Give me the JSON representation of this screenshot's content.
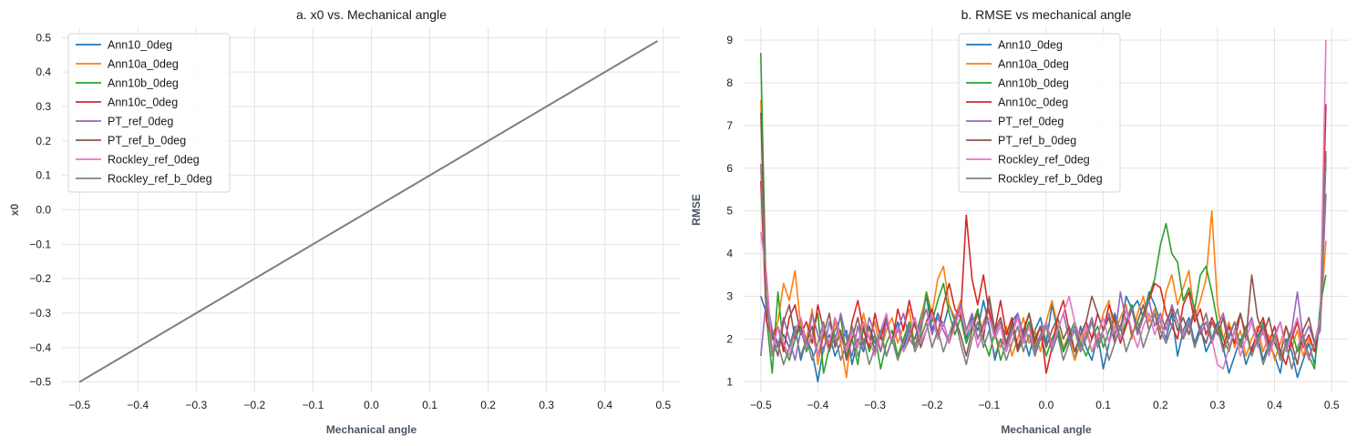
{
  "chart_data": [
    {
      "type": "line",
      "title": "a. x0 vs. Mechanical angle",
      "xlabel": "Mechanical angle",
      "ylabel": "x0",
      "xlim": [
        -0.53,
        0.53
      ],
      "ylim": [
        -0.53,
        0.53
      ],
      "xticks": [
        -0.5,
        -0.4,
        -0.3,
        -0.2,
        -0.1,
        0.0,
        0.1,
        0.2,
        0.3,
        0.4,
        0.5
      ],
      "xtick_labels": [
        "−0.5",
        "−0.4",
        "−0.3",
        "−0.2",
        "−0.1",
        "0.0",
        "0.1",
        "0.2",
        "0.3",
        "0.4",
        "0.5"
      ],
      "yticks": [
        -0.5,
        -0.4,
        -0.3,
        -0.2,
        -0.1,
        0.0,
        0.1,
        0.2,
        0.3,
        0.4,
        0.5
      ],
      "ytick_labels": [
        "−0.5",
        "−0.4",
        "−0.3",
        "−0.2",
        "−0.1",
        "0.0",
        "0.1",
        "0.2",
        "0.3",
        "0.4",
        "0.5"
      ],
      "grid": true,
      "legend_position": "top-left",
      "series": [
        {
          "name": "Ann10_0deg",
          "color": "#1f77b4",
          "x": [
            -0.5,
            0.49
          ],
          "y": [
            -0.5,
            0.49
          ]
        },
        {
          "name": "Ann10a_0deg",
          "color": "#ff7f0e",
          "x": [
            -0.5,
            0.49
          ],
          "y": [
            -0.5,
            0.49
          ]
        },
        {
          "name": "Ann10b_0deg",
          "color": "#2ca02c",
          "x": [
            -0.5,
            0.49
          ],
          "y": [
            -0.5,
            0.49
          ]
        },
        {
          "name": "Ann10c_0deg",
          "color": "#d62728",
          "x": [
            -0.5,
            0.49
          ],
          "y": [
            -0.5,
            0.49
          ]
        },
        {
          "name": "PT_ref_0deg",
          "color": "#9467bd",
          "x": [
            -0.5,
            0.49
          ],
          "y": [
            -0.5,
            0.49
          ]
        },
        {
          "name": "PT_ref_b_0deg",
          "color": "#8c564b",
          "x": [
            -0.5,
            0.49
          ],
          "y": [
            -0.5,
            0.49
          ]
        },
        {
          "name": "Rockley_ref_0deg",
          "color": "#e377c2",
          "x": [
            -0.5,
            0.49
          ],
          "y": [
            -0.5,
            0.49
          ]
        },
        {
          "name": "Rockley_ref_b_0deg",
          "color": "#7f7f7f",
          "x": [
            -0.5,
            0.49
          ],
          "y": [
            -0.5,
            0.49
          ]
        }
      ]
    },
    {
      "type": "line",
      "title": "b. RMSE vs mechanical angle",
      "xlabel": "Mechanical angle",
      "ylabel": "RMSE",
      "xlim": [
        -0.53,
        0.53
      ],
      "ylim": [
        0.75,
        9.3
      ],
      "xticks": [
        -0.5,
        -0.4,
        -0.3,
        -0.2,
        -0.1,
        0.0,
        0.1,
        0.2,
        0.3,
        0.4,
        0.5
      ],
      "xtick_labels": [
        "−0.5",
        "−0.4",
        "−0.3",
        "−0.2",
        "−0.1",
        "0.0",
        "0.1",
        "0.2",
        "0.3",
        "0.4",
        "0.5"
      ],
      "yticks": [
        1,
        2,
        3,
        4,
        5,
        6,
        7,
        8,
        9
      ],
      "ytick_labels": [
        "1",
        "2",
        "3",
        "4",
        "5",
        "6",
        "7",
        "8",
        "9"
      ],
      "grid": true,
      "legend_position": "upper-center",
      "x": [
        -0.5,
        -0.49,
        -0.48,
        -0.47,
        -0.46,
        -0.45,
        -0.44,
        -0.43,
        -0.42,
        -0.41,
        -0.4,
        -0.39,
        -0.38,
        -0.37,
        -0.36,
        -0.35,
        -0.34,
        -0.33,
        -0.32,
        -0.31,
        -0.3,
        -0.29,
        -0.28,
        -0.27,
        -0.26,
        -0.25,
        -0.24,
        -0.23,
        -0.22,
        -0.21,
        -0.2,
        -0.19,
        -0.18,
        -0.17,
        -0.16,
        -0.15,
        -0.14,
        -0.13,
        -0.12,
        -0.11,
        -0.1,
        -0.09,
        -0.08,
        -0.07,
        -0.06,
        -0.05,
        -0.04,
        -0.03,
        -0.02,
        -0.01,
        0.0,
        0.01,
        0.02,
        0.03,
        0.04,
        0.05,
        0.06,
        0.07,
        0.08,
        0.09,
        0.1,
        0.11,
        0.12,
        0.13,
        0.14,
        0.15,
        0.16,
        0.17,
        0.18,
        0.19,
        0.2,
        0.21,
        0.22,
        0.23,
        0.24,
        0.25,
        0.26,
        0.27,
        0.28,
        0.29,
        0.3,
        0.31,
        0.32,
        0.33,
        0.34,
        0.35,
        0.36,
        0.37,
        0.38,
        0.39,
        0.4,
        0.41,
        0.42,
        0.43,
        0.44,
        0.45,
        0.46,
        0.47,
        0.48,
        0.49
      ],
      "series": [
        {
          "name": "Ann10_0deg",
          "color": "#1f77b4",
          "values": [
            3.0,
            2.6,
            2.2,
            1.9,
            2.1,
            1.8,
            2.3,
            1.5,
            2.0,
            1.7,
            1.0,
            1.8,
            2.1,
            1.6,
            1.9,
            2.2,
            1.4,
            2.0,
            1.7,
            2.3,
            1.9,
            2.1,
            1.6,
            2.0,
            2.4,
            1.8,
            2.2,
            2.0,
            2.5,
            3.0,
            2.2,
            2.6,
            2.3,
            2.8,
            2.4,
            2.7,
            2.0,
            2.5,
            2.2,
            2.9,
            2.3,
            1.5,
            2.0,
            1.8,
            2.4,
            2.6,
            2.1,
            1.6,
            2.2,
            2.5,
            1.9,
            2.8,
            2.2,
            1.7,
            2.0,
            1.5,
            2.3,
            1.8,
            1.5,
            2.1,
            1.3,
            1.9,
            2.6,
            2.2,
            3.0,
            2.7,
            2.9,
            2.5,
            3.1,
            2.8,
            2.4,
            2.0,
            2.6,
            1.6,
            2.2,
            2.5,
            1.9,
            2.3,
            1.7,
            2.0,
            2.4,
            1.8,
            1.2,
            1.6,
            2.0,
            1.4,
            1.8,
            2.1,
            1.5,
            1.9,
            1.6,
            1.2,
            2.0,
            1.7,
            1.1,
            1.5,
            1.9,
            1.4,
            2.5,
            6.2
          ]
        },
        {
          "name": "Ann10a_0deg",
          "color": "#ff7f0e",
          "values": [
            7.6,
            2.8,
            2.1,
            2.4,
            3.3,
            2.9,
            3.6,
            2.3,
            2.0,
            2.7,
            1.4,
            2.1,
            1.7,
            2.4,
            1.9,
            1.1,
            2.3,
            1.8,
            2.6,
            2.0,
            2.4,
            1.7,
            2.2,
            2.5,
            1.9,
            2.3,
            2.7,
            1.8,
            2.4,
            3.1,
            2.6,
            3.4,
            3.7,
            2.8,
            2.5,
            2.9,
            2.2,
            2.6,
            2.0,
            2.4,
            2.7,
            2.1,
            1.8,
            2.3,
            1.6,
            2.0,
            2.5,
            1.9,
            2.2,
            1.7,
            2.4,
            2.9,
            2.3,
            1.8,
            2.1,
            1.5,
            1.9,
            2.2,
            1.7,
            2.0,
            2.6,
            2.9,
            2.1,
            2.5,
            2.8,
            2.0,
            2.6,
            3.0,
            2.4,
            2.7,
            2.2,
            3.1,
            3.5,
            2.8,
            3.2,
            3.6,
            2.5,
            2.9,
            3.4,
            5.0,
            2.8,
            2.0,
            2.4,
            1.8,
            2.2,
            1.6,
            2.0,
            2.3,
            1.7,
            2.1,
            1.5,
            1.9,
            2.3,
            1.8,
            2.2,
            1.6,
            2.0,
            1.7,
            2.4,
            4.3
          ]
        },
        {
          "name": "Ann10b_0deg",
          "color": "#2ca02c",
          "values": [
            8.7,
            2.5,
            1.2,
            3.1,
            1.8,
            1.5,
            2.0,
            2.3,
            1.7,
            2.1,
            2.6,
            1.2,
            1.8,
            2.2,
            2.5,
            1.6,
            2.0,
            1.4,
            2.3,
            1.7,
            2.1,
            1.3,
            1.9,
            2.2,
            1.6,
            2.0,
            2.4,
            1.8,
            2.1,
            3.1,
            2.4,
            2.9,
            3.3,
            2.6,
            2.1,
            2.5,
            1.9,
            2.3,
            2.7,
            2.0,
            1.6,
            2.2,
            1.5,
            1.9,
            2.3,
            1.7,
            2.0,
            2.4,
            1.8,
            2.1,
            1.6,
            2.0,
            2.3,
            1.7,
            2.1,
            2.4,
            1.9,
            1.6,
            2.0,
            2.3,
            1.8,
            2.2,
            2.5,
            2.0,
            2.4,
            2.8,
            2.2,
            2.6,
            3.0,
            3.4,
            4.2,
            4.7,
            4.0,
            3.8,
            2.9,
            3.2,
            2.7,
            3.5,
            3.7,
            3.1,
            2.4,
            2.0,
            1.7,
            2.2,
            1.9,
            2.3,
            1.6,
            2.0,
            2.4,
            1.8,
            2.1,
            1.5,
            1.9,
            2.2,
            1.7,
            2.0,
            1.6,
            1.3,
            2.8,
            3.5
          ]
        },
        {
          "name": "Ann10c_0deg",
          "color": "#d62728",
          "values": [
            5.7,
            2.4,
            2.0,
            2.3,
            1.7,
            2.5,
            2.8,
            2.1,
            2.4,
            1.9,
            2.8,
            2.2,
            1.8,
            2.5,
            2.1,
            1.7,
            2.4,
            2.9,
            2.2,
            1.8,
            2.6,
            2.0,
            2.4,
            1.9,
            2.7,
            2.2,
            2.9,
            2.3,
            2.0,
            2.4,
            2.7,
            2.1,
            2.8,
            3.3,
            2.7,
            2.5,
            4.9,
            3.4,
            2.8,
            3.5,
            2.6,
            2.2,
            2.9,
            2.1,
            2.5,
            1.8,
            2.2,
            2.6,
            1.9,
            2.3,
            1.2,
            1.8,
            2.5,
            2.9,
            2.2,
            1.7,
            2.1,
            2.4,
            2.0,
            2.6,
            2.2,
            2.8,
            2.4,
            1.9,
            2.3,
            2.7,
            2.1,
            2.5,
            2.9,
            3.3,
            3.2,
            2.6,
            2.3,
            2.0,
            2.8,
            3.1,
            2.4,
            2.7,
            2.1,
            2.5,
            2.2,
            1.8,
            2.3,
            1.9,
            2.6,
            2.1,
            1.7,
            2.2,
            2.5,
            1.9,
            2.3,
            1.7,
            1.4,
            2.0,
            2.4,
            1.8,
            2.1,
            1.7,
            2.4,
            7.5
          ]
        },
        {
          "name": "PT_ref_0deg",
          "color": "#9467bd",
          "values": [
            1.6,
            3.0,
            2.2,
            1.8,
            2.5,
            2.0,
            1.5,
            2.2,
            1.8,
            2.6,
            2.1,
            1.7,
            2.4,
            1.9,
            2.6,
            2.0,
            1.6,
            2.3,
            1.8,
            2.5,
            2.1,
            1.7,
            2.4,
            1.9,
            2.2,
            2.6,
            2.0,
            1.8,
            2.3,
            2.7,
            2.1,
            2.5,
            2.2,
            1.9,
            2.4,
            2.8,
            2.2,
            2.6,
            2.0,
            2.3,
            2.9,
            2.1,
            2.4,
            1.8,
            2.2,
            2.6,
            2.0,
            2.3,
            1.7,
            2.1,
            2.4,
            1.9,
            2.2,
            2.6,
            2.0,
            2.3,
            1.8,
            2.1,
            2.5,
            1.9,
            2.2,
            2.6,
            2.0,
            3.1,
            2.4,
            2.7,
            2.1,
            2.5,
            2.9,
            2.3,
            2.6,
            2.2,
            2.8,
            2.4,
            2.0,
            2.3,
            2.7,
            2.1,
            2.4,
            1.9,
            2.3,
            2.6,
            2.0,
            2.4,
            1.8,
            2.2,
            2.5,
            1.9,
            2.3,
            1.7,
            2.1,
            2.4,
            1.8,
            2.2,
            3.1,
            2.0,
            2.3,
            1.9,
            2.3,
            5.4
          ]
        },
        {
          "name": "PT_ref_b_0deg",
          "color": "#8c564b",
          "values": [
            7.3,
            2.8,
            2.1,
            1.6,
            2.4,
            2.8,
            2.0,
            2.5,
            1.9,
            2.3,
            1.6,
            2.1,
            2.6,
            1.8,
            2.2,
            1.5,
            2.0,
            2.5,
            1.9,
            2.3,
            1.7,
            2.1,
            2.5,
            1.9,
            2.3,
            1.7,
            2.0,
            2.4,
            1.8,
            2.2,
            2.6,
            2.0,
            2.4,
            1.9,
            2.5,
            2.1,
            1.6,
            2.2,
            2.6,
            2.0,
            3.0,
            2.2,
            2.5,
            1.9,
            2.4,
            1.7,
            2.1,
            2.6,
            2.0,
            2.3,
            1.8,
            2.2,
            2.5,
            2.0,
            2.3,
            1.7,
            2.1,
            2.4,
            3.0,
            2.6,
            2.2,
            2.5,
            1.9,
            2.3,
            2.7,
            2.1,
            2.4,
            2.8,
            2.2,
            2.6,
            2.0,
            2.4,
            2.7,
            2.2,
            2.5,
            2.1,
            2.7,
            2.2,
            1.9,
            2.4,
            2.1,
            2.5,
            1.8,
            2.2,
            2.6,
            2.0,
            3.5,
            2.5,
            2.1,
            2.5,
            1.9,
            1.6,
            2.3,
            1.9,
            1.4,
            2.2,
            2.5,
            1.9,
            2.5,
            6.3
          ]
        },
        {
          "name": "Rockley_ref_0deg",
          "color": "#e377c2",
          "values": [
            4.5,
            3.5,
            1.7,
            2.3,
            1.9,
            1.6,
            2.2,
            2.5,
            1.8,
            2.1,
            1.6,
            2.3,
            1.9,
            2.5,
            2.0,
            1.7,
            2.2,
            1.8,
            2.4,
            2.0,
            1.6,
            2.2,
            2.6,
            1.9,
            2.3,
            1.7,
            2.1,
            2.5,
            1.9,
            2.2,
            2.6,
            2.0,
            2.4,
            1.9,
            2.3,
            2.7,
            2.1,
            2.4,
            1.8,
            2.2,
            2.5,
            2.0,
            2.3,
            1.7,
            2.1,
            2.5,
            1.9,
            2.3,
            1.6,
            2.0,
            2.4,
            1.8,
            2.2,
            2.6,
            3.0,
            2.4,
            2.0,
            2.3,
            1.7,
            2.1,
            2.5,
            1.9,
            2.3,
            2.0,
            2.7,
            2.2,
            1.8,
            2.3,
            2.6,
            2.1,
            2.5,
            1.9,
            2.3,
            2.7,
            2.1,
            2.4,
            1.8,
            2.2,
            2.6,
            2.0,
            1.4,
            1.3,
            1.8,
            2.2,
            1.6,
            2.0,
            2.4,
            1.8,
            2.2,
            1.6,
            2.0,
            2.4,
            1.7,
            2.1,
            2.5,
            1.9,
            1.5,
            1.9,
            2.5,
            9.0
          ]
        },
        {
          "name": "Rockley_ref_b_0deg",
          "color": "#7f7f7f",
          "values": [
            6.1,
            2.9,
            1.6,
            1.9,
            1.4,
            1.8,
            2.2,
            1.6,
            2.0,
            1.5,
            1.9,
            2.4,
            1.7,
            2.1,
            1.5,
            1.9,
            2.3,
            1.6,
            2.0,
            1.4,
            1.8,
            2.2,
            1.6,
            2.0,
            1.5,
            1.9,
            2.3,
            1.7,
            2.0,
            2.4,
            1.8,
            2.2,
            1.7,
            2.1,
            2.5,
            1.9,
            1.4,
            2.0,
            2.4,
            1.8,
            2.2,
            1.6,
            2.0,
            1.5,
            1.9,
            2.3,
            1.7,
            2.1,
            1.6,
            2.0,
            2.3,
            1.7,
            2.1,
            1.5,
            1.9,
            2.2,
            1.7,
            2.0,
            2.4,
            1.8,
            2.1,
            1.5,
            1.9,
            2.3,
            1.7,
            2.1,
            2.4,
            1.8,
            2.2,
            2.6,
            2.2,
            1.9,
            2.3,
            2.7,
            2.0,
            2.4,
            1.8,
            2.2,
            2.6,
            2.0,
            2.3,
            1.7,
            2.1,
            2.4,
            1.8,
            2.2,
            1.6,
            2.0,
            1.4,
            1.8,
            2.1,
            1.5,
            1.9,
            1.3,
            1.8,
            2.1,
            1.6,
            1.9,
            2.2,
            6.4
          ]
        }
      ]
    }
  ]
}
